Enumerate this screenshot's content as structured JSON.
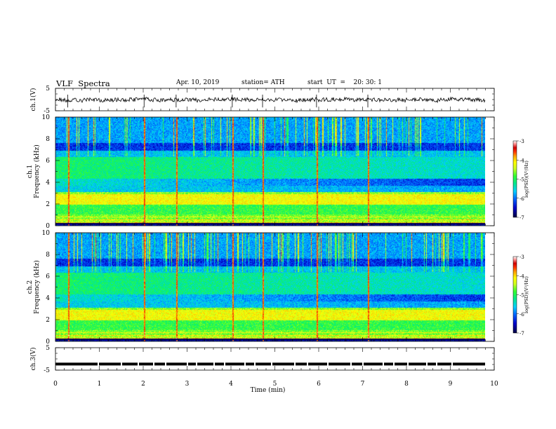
{
  "header": {
    "title": "VLF  Spectra",
    "date": "Apr. 10, 2019",
    "station": "station= ATH",
    "start": "start  UT  =    20: 30: 1"
  },
  "chart_data": {
    "type": "heatmap",
    "x_axis": {
      "label": "Time  (min)",
      "range": [
        0,
        10
      ],
      "ticks": [
        "0",
        "1",
        "2",
        "3",
        "4",
        "5",
        "6",
        "7",
        "8",
        "9",
        "10"
      ]
    },
    "panels": [
      {
        "id": "ch1-waveform",
        "type": "line",
        "ylabel": "ch.1(V)",
        "ylim": [
          -5,
          5
        ],
        "yticks": [
          "5",
          "-5"
        ],
        "baseline": 0,
        "noise_amplitude": 0.9
      },
      {
        "id": "ch1-spectrogram",
        "type": "heatmap",
        "ylabel": "ch.1\nFrequency (kHz)",
        "ylabel_lines": [
          "ch.1",
          "Frequency (kHz)"
        ],
        "ylim": [
          0,
          10
        ],
        "yticks": [
          "0",
          "2",
          "4",
          "6",
          "8",
          "10"
        ],
        "sferic_times_min": [
          0.28,
          2.02,
          2.75,
          4.03,
          4.72,
          5.95,
          7.12
        ],
        "colorbar": {
          "label": "log(PSD)(V²/Hz)",
          "range": [
            -7,
            -3
          ],
          "ticks": [
            "-3",
            "-4",
            "-5",
            "-6",
            "-7"
          ]
        }
      },
      {
        "id": "ch2-spectrogram",
        "type": "heatmap",
        "ylabel": "ch.2\nFrequency (kHz)",
        "ylabel_lines": [
          "ch.2",
          "Frequency (kHz)"
        ],
        "ylim": [
          0,
          10
        ],
        "yticks": [
          "0",
          "2",
          "4",
          "6",
          "8",
          "10"
        ],
        "sferic_times_min": [
          0.28,
          2.02,
          2.75,
          4.03,
          4.72,
          5.95,
          7.12
        ],
        "colorbar": {
          "label": "log(PSD)(V²/Hz)",
          "range": [
            -7,
            -3
          ],
          "ticks": [
            "-3",
            "-4",
            "-5",
            "-6",
            "-7"
          ]
        }
      },
      {
        "id": "ch3-trace",
        "type": "line",
        "ylabel": "ch.3(V)",
        "ylim": [
          -5,
          5
        ],
        "yticks": [
          "5",
          "-5"
        ],
        "baseline": -2.3
      }
    ],
    "colormap": [
      "#000040",
      "#0000c8",
      "#0050ff",
      "#00c8ff",
      "#00e8a0",
      "#30ff30",
      "#c0ff20",
      "#ffff00",
      "#ffb000",
      "#ff4000",
      "#d00000",
      "#ff9090",
      "#ffffff"
    ]
  }
}
